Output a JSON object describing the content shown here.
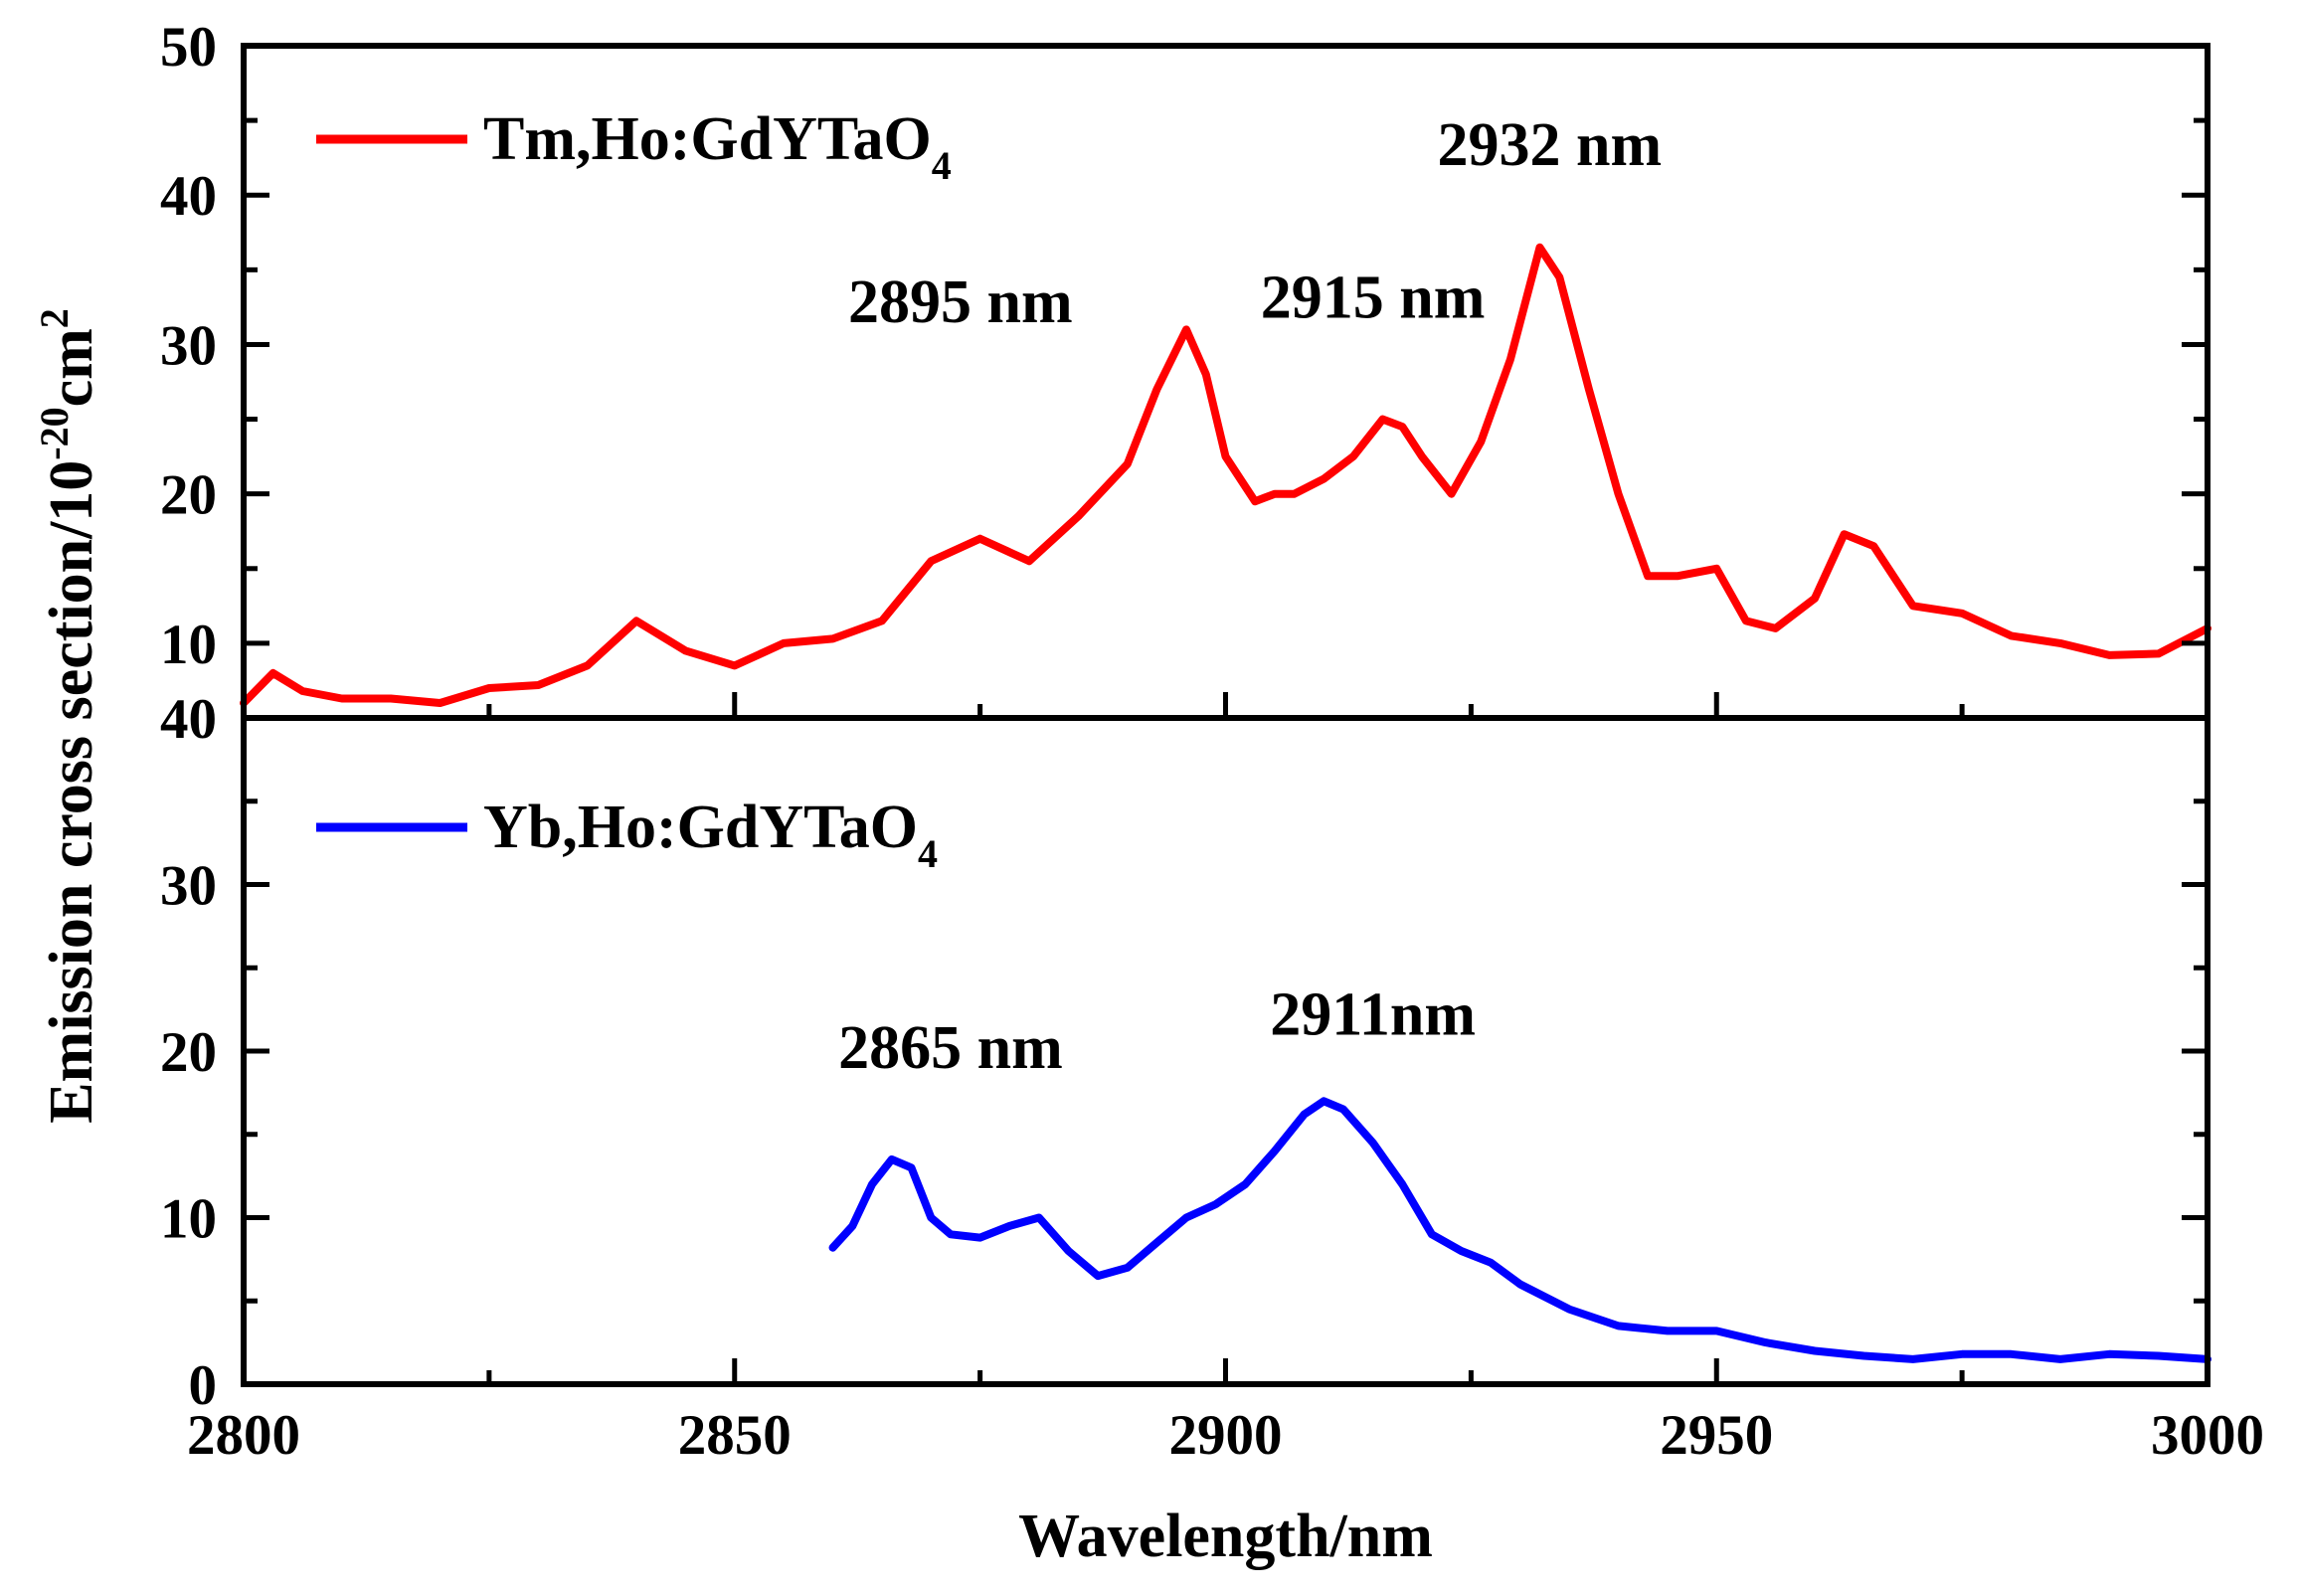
{
  "chart_data": {
    "type": "line",
    "xlabel": "Wavelength/nm",
    "ylabel": {
      "main": "Emission cross section/10",
      "exp": "-20",
      "unit": "cm",
      "unit_exp": "2"
    },
    "x_ticks": [
      "2800",
      "2850",
      "2900",
      "2950",
      "3000"
    ],
    "xlim": [
      2800,
      3000
    ],
    "panels": [
      {
        "ylim": [
          5,
          50
        ],
        "y_ticks": [
          {
            "value": 10,
            "label": "10"
          },
          {
            "value": 20,
            "label": "20"
          },
          {
            "value": 30,
            "label": "30"
          },
          {
            "value": 40,
            "label": "40"
          },
          {
            "value": 50,
            "label": "50"
          }
        ],
        "legend": {
          "text": "Tm,Ho:GdYTaO",
          "sub": "4"
        },
        "series": [
          {
            "name": "Tm,Ho:GdYTaO4",
            "color": "#ff0000",
            "x": [
              2800,
              2803,
              2806,
              2810,
              2815,
              2820,
              2825,
              2830,
              2835,
              2840,
              2845,
              2850,
              2855,
              2860,
              2865,
              2870,
              2875,
              2880,
              2885,
              2890,
              2893,
              2896,
              2898,
              2900,
              2903,
              2905,
              2907,
              2910,
              2913,
              2916,
              2918,
              2920,
              2923,
              2926,
              2929,
              2932,
              2934,
              2937,
              2940,
              2943,
              2946,
              2950,
              2953,
              2956,
              2960,
              2963,
              2966,
              2970,
              2975,
              2980,
              2985,
              2990,
              2995,
              3000
            ],
            "y": [
              6.0,
              8.0,
              6.8,
              6.3,
              6.3,
              6.0,
              7.0,
              7.2,
              8.5,
              11.5,
              9.5,
              8.5,
              10.0,
              10.3,
              11.5,
              15.5,
              17.0,
              15.5,
              18.5,
              22.0,
              27.0,
              31.0,
              28.0,
              22.5,
              19.5,
              20.0,
              20.0,
              21.0,
              22.5,
              25.0,
              24.5,
              22.5,
              20.0,
              23.5,
              29.0,
              36.5,
              34.5,
              27.0,
              20.0,
              14.5,
              14.5,
              15.0,
              11.5,
              11.0,
              13.0,
              17.3,
              16.5,
              12.5,
              12.0,
              10.5,
              10.0,
              9.2,
              9.3,
              11.0
            ]
          }
        ],
        "annotations": [
          {
            "text": "2895 nm",
            "x": 2873,
            "y": 31.5
          },
          {
            "text": "2915 nm",
            "x": 2915,
            "y": 31.8
          },
          {
            "text": "2932 nm",
            "x": 2933,
            "y": 42.0
          }
        ]
      },
      {
        "ylim": [
          0,
          40
        ],
        "y_ticks": [
          {
            "value": 0,
            "label": "0"
          },
          {
            "value": 10,
            "label": "10"
          },
          {
            "value": 20,
            "label": "20"
          },
          {
            "value": 30,
            "label": "30"
          },
          {
            "value": 40,
            "label": "40"
          }
        ],
        "legend": {
          "text": "Yb,Ho:GdYTaO",
          "sub": "4"
        },
        "series": [
          {
            "name": "Yb,Ho:GdYTaO4",
            "color": "#0000ff",
            "x": [
              2860,
              2862,
              2864,
              2866,
              2868,
              2870,
              2872,
              2875,
              2878,
              2881,
              2884,
              2887,
              2890,
              2893,
              2896,
              2899,
              2902,
              2905,
              2908,
              2910,
              2912,
              2915,
              2918,
              2921,
              2924,
              2927,
              2930,
              2935,
              2940,
              2945,
              2950,
              2955,
              2960,
              2965,
              2970,
              2975,
              2980,
              2985,
              2990,
              2995,
              3000
            ],
            "y": [
              8.2,
              9.5,
              12.0,
              13.5,
              13.0,
              10.0,
              9.0,
              8.8,
              9.5,
              10.0,
              8.0,
              6.5,
              7.0,
              8.5,
              10.0,
              10.8,
              12.0,
              14.0,
              16.2,
              17.0,
              16.5,
              14.5,
              12.0,
              9.0,
              8.0,
              7.3,
              6.0,
              4.5,
              3.5,
              3.2,
              3.2,
              2.5,
              2.0,
              1.7,
              1.5,
              1.8,
              1.8,
              1.5,
              1.8,
              1.7,
              1.5
            ]
          }
        ],
        "annotations": [
          {
            "text": "2865 nm",
            "x": 2872,
            "y": 19.0
          },
          {
            "text": "2911nm",
            "x": 2915,
            "y": 21.0
          }
        ]
      }
    ]
  }
}
